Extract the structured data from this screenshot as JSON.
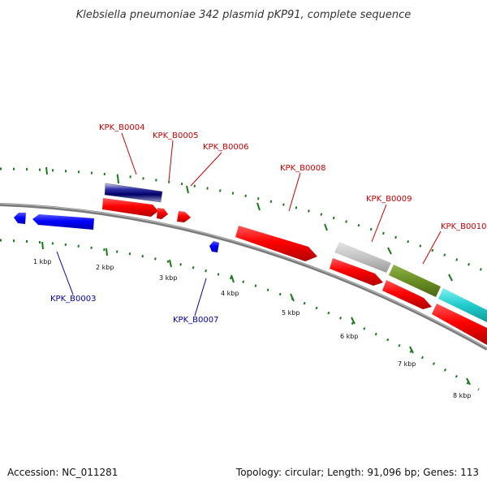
{
  "title": "Klebsiella pneumoniae 342 plasmid pKP91, complete sequence",
  "footer": {
    "accession": "Accession: NC_011281",
    "summary": "Topology: circular; Length: 91,096 bp; Genes: 113"
  },
  "colors": {
    "forward_label": "#cc0000",
    "reverse_label": "#0000aa",
    "gc_tick": "#1a7a1a",
    "backbone": "#808080"
  },
  "genes": [
    {
      "name": "KPK_B0003",
      "strand": "reverse"
    },
    {
      "name": "KPK_B0004",
      "strand": "forward"
    },
    {
      "name": "KPK_B0005",
      "strand": "forward"
    },
    {
      "name": "KPK_B0006",
      "strand": "forward"
    },
    {
      "name": "KPK_B0007",
      "strand": "reverse"
    },
    {
      "name": "KPK_B0008",
      "strand": "forward"
    },
    {
      "name": "KPK_B0009",
      "strand": "forward"
    },
    {
      "name": "KPK_B0010",
      "strand": "forward"
    }
  ],
  "scale_labels": [
    "1 kbp",
    "2 kbp",
    "3 kbp",
    "4 kbp",
    "5 kbp",
    "6 kbp",
    "7 kbp",
    "8 kbp"
  ]
}
